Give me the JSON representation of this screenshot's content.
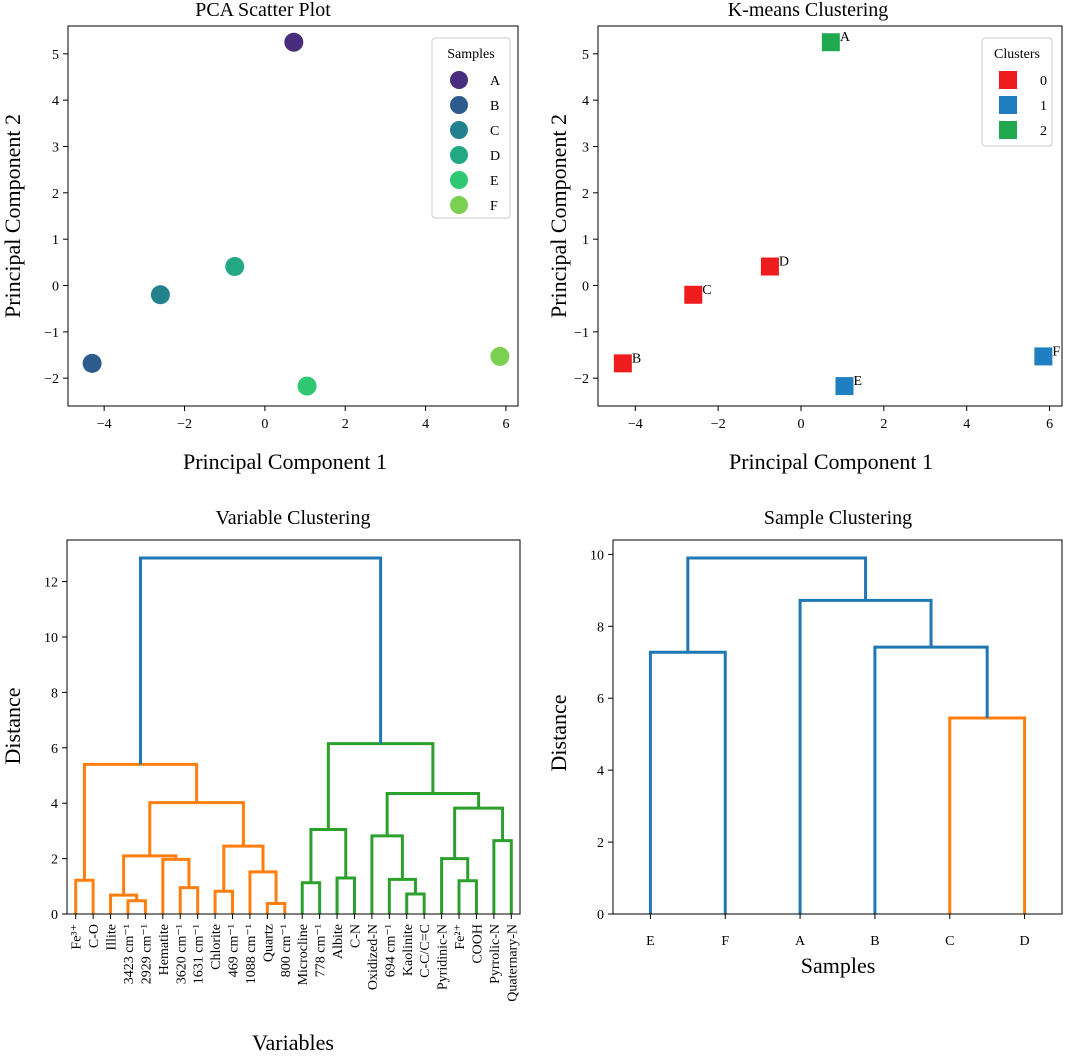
{
  "chart_data": [
    {
      "type": "scatter",
      "title": "PCA Scatter Plot",
      "xlabel": "Principal Component 1",
      "ylabel": "Principal Component 2",
      "xlim": [
        -4.9,
        6.3
      ],
      "ylim": [
        -2.6,
        5.6
      ],
      "xticks": [
        -4,
        -2,
        0,
        2,
        4,
        6
      ],
      "yticks": [
        -2,
        -1,
        0,
        1,
        2,
        3,
        4,
        5
      ],
      "legend_title": "Samples",
      "legend_position": "top-right",
      "points": [
        {
          "name": "A",
          "x": 0.72,
          "y": 5.25,
          "color": "#472d7b"
        },
        {
          "name": "B",
          "x": -4.3,
          "y": -1.68,
          "color": "#2c5b8c"
        },
        {
          "name": "C",
          "x": -2.6,
          "y": -0.2,
          "color": "#21818c"
        },
        {
          "name": "D",
          "x": -0.75,
          "y": 0.41,
          "color": "#23a884"
        },
        {
          "name": "E",
          "x": 1.05,
          "y": -2.17,
          "color": "#2ec872"
        },
        {
          "name": "F",
          "x": 5.85,
          "y": -1.53,
          "color": "#7ad151"
        }
      ]
    },
    {
      "type": "scatter",
      "title": "K-means Clustering",
      "xlabel": "Principal Component 1",
      "ylabel": "Principal Component 2",
      "xlim": [
        -4.9,
        6.3
      ],
      "ylim": [
        -2.6,
        5.6
      ],
      "xticks": [
        -4,
        -2,
        0,
        2,
        4,
        6
      ],
      "yticks": [
        -2,
        -1,
        0,
        1,
        2,
        3,
        4,
        5
      ],
      "legend_title": "Clusters",
      "legend_position": "top-right",
      "clusters": [
        {
          "name": "0",
          "color": "#ee1c1c"
        },
        {
          "name": "1",
          "color": "#1f7fc1"
        },
        {
          "name": "2",
          "color": "#1faa4f"
        }
      ],
      "points": [
        {
          "name": "A",
          "x": 0.72,
          "y": 5.25,
          "cluster": 2
        },
        {
          "name": "B",
          "x": -4.3,
          "y": -1.68,
          "cluster": 0
        },
        {
          "name": "C",
          "x": -2.6,
          "y": -0.2,
          "cluster": 0
        },
        {
          "name": "D",
          "x": -0.75,
          "y": 0.41,
          "cluster": 0
        },
        {
          "name": "E",
          "x": 1.05,
          "y": -2.17,
          "cluster": 1
        },
        {
          "name": "F",
          "x": 5.85,
          "y": -1.53,
          "cluster": 1
        }
      ]
    },
    {
      "type": "dendrogram",
      "title": "Variable Clustering",
      "xlabel": "Variables",
      "ylabel": "Distance",
      "ylim": [
        0,
        13.5
      ],
      "yticks": [
        0,
        2,
        4,
        6,
        8,
        10,
        12
      ],
      "leaves": [
        "Fe$^3+$",
        "C-O",
        "Illite",
        "3423 cm$^{-1}$",
        "2929 cm$^{-1}$",
        "Hematite",
        "3620 cm$^{-1}$",
        "1631 cm$^{-1}$",
        "Chlorite",
        "469 cm$^{-1}$",
        "1088 cm$^{-1}$",
        "Quartz",
        "800 cm$^{-1}$",
        "Microcline",
        "778 cm$^{-1}$",
        "Albite",
        "C-N",
        "Oxidized-N",
        "694 cm$^{-1}$",
        "Kaolinite",
        "C-C/C=C",
        "Pyridinic-N",
        "Fe$^2+$",
        "COOH",
        "Pyrrolic-N",
        "Quaternary-N"
      ],
      "leaf_labels": [
        "Fe³⁺",
        "C-O",
        "Illite",
        "3423 cm⁻¹",
        "2929 cm⁻¹",
        "Hematite",
        "3620 cm⁻¹",
        "1631 cm⁻¹",
        "Chlorite",
        "469 cm⁻¹",
        "1088 cm⁻¹",
        "Quartz",
        "800 cm⁻¹",
        "Microcline",
        "778 cm⁻¹",
        "Albite",
        "C-N",
        "Oxidized-N",
        "694 cm⁻¹",
        "Kaolinite",
        "C-C/C=C",
        "Pyridinic-N",
        "Fe²⁺",
        "COOH",
        "Pyrrolic-N",
        "Quaternary-N"
      ],
      "colors": {
        "above": "#1f77b4",
        "cluster1": "#ff7f0e",
        "cluster2": "#2ca02c"
      },
      "merges": [
        {
          "a": 0,
          "b": 1,
          "h": 1.22,
          "color": "cluster1"
        },
        {
          "a": 3,
          "b": 4,
          "h": 0.48,
          "color": "cluster1"
        },
        {
          "a": 2,
          "b": "m1",
          "h": 0.68,
          "color": "cluster1"
        },
        {
          "a": 6,
          "b": 7,
          "h": 0.95,
          "color": "cluster1"
        },
        {
          "a": 5,
          "b": "m3",
          "h": 1.97,
          "color": "cluster1"
        },
        {
          "a": "m2",
          "b": "m4",
          "h": 2.1,
          "color": "cluster1"
        },
        {
          "a": 8,
          "b": 9,
          "h": 0.82,
          "color": "cluster1"
        },
        {
          "a": 11,
          "b": 12,
          "h": 0.38,
          "color": "cluster1"
        },
        {
          "a": 10,
          "b": "m7",
          "h": 1.52,
          "color": "cluster1"
        },
        {
          "a": "m6",
          "b": "m8",
          "h": 2.45,
          "color": "cluster1"
        },
        {
          "a": "m5",
          "b": "m9",
          "h": 4.02,
          "color": "cluster1"
        },
        {
          "a": "m0",
          "b": "m10",
          "h": 5.4,
          "color": "cluster1"
        },
        {
          "a": 13,
          "b": 14,
          "h": 1.13,
          "color": "cluster2"
        },
        {
          "a": 15,
          "b": 16,
          "h": 1.3,
          "color": "cluster2"
        },
        {
          "a": "m12",
          "b": "m13",
          "h": 3.05,
          "color": "cluster2"
        },
        {
          "a": 19,
          "b": 20,
          "h": 0.72,
          "color": "cluster2"
        },
        {
          "a": 18,
          "b": "m15",
          "h": 1.25,
          "color": "cluster2"
        },
        {
          "a": 17,
          "b": "m16",
          "h": 2.82,
          "color": "cluster2"
        },
        {
          "a": 22,
          "b": 23,
          "h": 1.2,
          "color": "cluster2"
        },
        {
          "a": 21,
          "b": "m18",
          "h": 2.0,
          "color": "cluster2"
        },
        {
          "a": 24,
          "b": 25,
          "h": 2.65,
          "color": "cluster2"
        },
        {
          "a": "m19",
          "b": "m20",
          "h": 3.82,
          "color": "cluster2"
        },
        {
          "a": "m17",
          "b": "m21",
          "h": 4.35,
          "color": "cluster2"
        },
        {
          "a": "m14",
          "b": "m22",
          "h": 6.15,
          "color": "cluster2"
        },
        {
          "a": "m11",
          "b": "m23",
          "h": 12.85,
          "color": "above"
        }
      ]
    },
    {
      "type": "dendrogram",
      "title": "Sample Clustering",
      "xlabel": "Samples",
      "ylabel": "Distance",
      "ylim": [
        0,
        10.4
      ],
      "yticks": [
        0,
        2,
        4,
        6,
        8,
        10
      ],
      "leaves": [
        "E",
        "F",
        "A",
        "B",
        "C",
        "D"
      ],
      "leaf_labels": [
        "E",
        "F",
        "A",
        "B",
        "C",
        "D"
      ],
      "colors": {
        "above": "#1f77b4",
        "cluster1": "#ff7f0e"
      },
      "merges": [
        {
          "a": 0,
          "b": 1,
          "h": 7.28,
          "color": "above"
        },
        {
          "a": 4,
          "b": 5,
          "h": 5.45,
          "color": "cluster1"
        },
        {
          "a": 3,
          "b": "m1",
          "h": 7.42,
          "color": "above"
        },
        {
          "a": 2,
          "b": "m2",
          "h": 8.72,
          "color": "above"
        },
        {
          "a": "m0",
          "b": "m3",
          "h": 9.9,
          "color": "above"
        }
      ]
    }
  ]
}
